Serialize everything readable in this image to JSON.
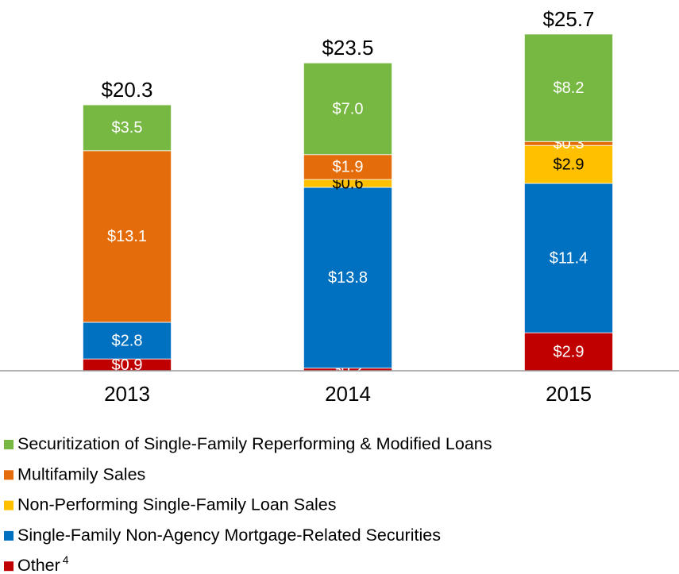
{
  "chart_data": {
    "type": "stacked_bar",
    "categories": [
      "2013",
      "2014",
      "2015"
    ],
    "ylim": [
      0,
      28
    ],
    "series": [
      {
        "name": "Other",
        "name_note": "4",
        "color": "#c00000",
        "label_color": "#ffffff",
        "values": [
          0.9,
          0.2,
          2.9
        ],
        "value_labels": [
          "$0.9",
          "$0.2",
          "$2.9"
        ]
      },
      {
        "name": "Single-Family Non-Agency Mortgage-Related Securities",
        "color": "#0070c0",
        "label_color": "#ffffff",
        "values": [
          2.8,
          13.8,
          11.4
        ],
        "value_labels": [
          "$2.8",
          "$13.8",
          "$11.4"
        ]
      },
      {
        "name": "Non-Performing Single-Family Loan Sales",
        "color": "#ffc000",
        "label_color": "#000000",
        "values": [
          null,
          0.6,
          2.9
        ],
        "value_labels": [
          null,
          "$0.6",
          "$2.9"
        ]
      },
      {
        "name": "Multifamily Sales",
        "color": "#e46c0a",
        "label_color": "#ffffff",
        "values": [
          13.1,
          1.9,
          0.3
        ],
        "value_labels": [
          "$13.1",
          "$1.9",
          "$0.3"
        ]
      },
      {
        "name": "Securitization of Single-Family Reperforming & Modified Loans",
        "color": "#77b843",
        "label_color": "#ffffff",
        "values": [
          3.5,
          7.0,
          8.2
        ],
        "value_labels": [
          "$3.5",
          "$7.0",
          "$8.2"
        ]
      }
    ],
    "totals": [
      20.3,
      23.5,
      25.7
    ],
    "total_labels": [
      "$20.3",
      "$23.5",
      "$25.7"
    ]
  }
}
